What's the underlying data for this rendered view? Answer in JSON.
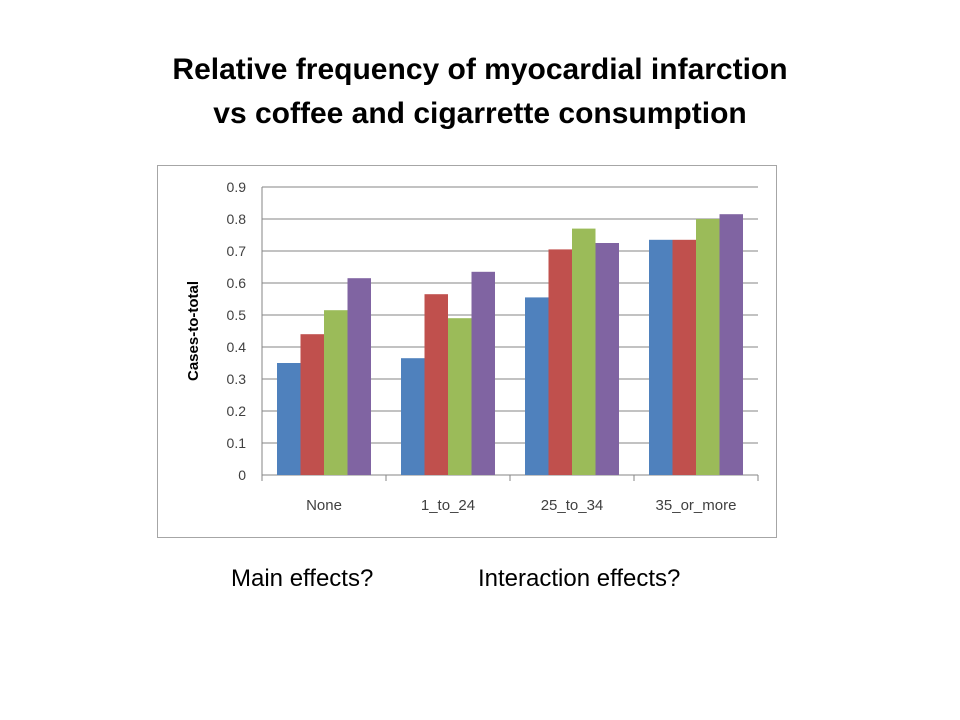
{
  "slide": {
    "title_line1": "Relative frequency of myocardial infarction",
    "title_line2": "vs coffee and cigarrette consumption",
    "question1": "Main effects?",
    "question2": "Interaction effects?"
  },
  "chart_data": {
    "type": "bar",
    "title": "",
    "xlabel": "",
    "ylabel": "Cases-to-total",
    "ylim": [
      0,
      0.9
    ],
    "yticks": [
      0,
      0.1,
      0.2,
      0.3,
      0.4,
      0.5,
      0.6,
      0.7,
      0.8,
      0.9
    ],
    "ytick_labels": [
      "0",
      "0.1",
      "0.2",
      "0.3",
      "0.4",
      "0.5",
      "0.6",
      "0.7",
      "0.8",
      "0.9"
    ],
    "grid": true,
    "legend": "none",
    "categories": [
      "None",
      "1_to_24",
      "25_to_34",
      "35_or_more"
    ],
    "series": [
      {
        "color": "#4f81bd",
        "values": [
          0.35,
          0.365,
          0.555,
          0.735
        ]
      },
      {
        "color": "#c0504d",
        "values": [
          0.44,
          0.565,
          0.705,
          0.735
        ]
      },
      {
        "color": "#9bbb59",
        "values": [
          0.515,
          0.49,
          0.77,
          0.8
        ]
      },
      {
        "color": "#8064a2",
        "values": [
          0.615,
          0.635,
          0.725,
          0.815
        ]
      }
    ]
  }
}
